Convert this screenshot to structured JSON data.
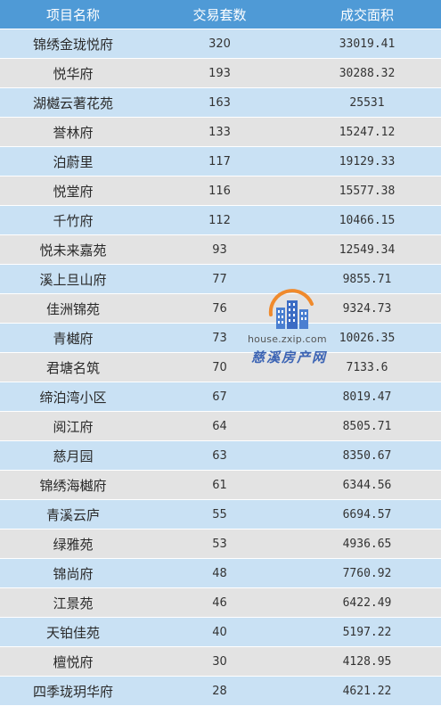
{
  "table": {
    "headers": [
      "项目名称",
      "交易套数",
      "成交面积"
    ],
    "rows": [
      [
        "锦绣金珑悦府",
        "320",
        "33019.41"
      ],
      [
        "悦华府",
        "193",
        "30288.32"
      ],
      [
        "湖樾云著花苑",
        "163",
        "25531"
      ],
      [
        "誉林府",
        "133",
        "15247.12"
      ],
      [
        "泊蔚里",
        "117",
        "19129.33"
      ],
      [
        "悦堂府",
        "116",
        "15577.38"
      ],
      [
        "千竹府",
        "112",
        "10466.15"
      ],
      [
        "悦未来嘉苑",
        "93",
        "12549.34"
      ],
      [
        "溪上旦山府",
        "77",
        "9855.71"
      ],
      [
        "佳洲锦苑",
        "76",
        "9324.73"
      ],
      [
        "青樾府",
        "73",
        "10026.35"
      ],
      [
        "君塘名筑",
        "70",
        "7133.6"
      ],
      [
        "缔泊湾小区",
        "67",
        "8019.47"
      ],
      [
        "阅江府",
        "64",
        "8505.71"
      ],
      [
        "慈月园",
        "63",
        "8350.67"
      ],
      [
        "锦绣海樾府",
        "61",
        "6344.56"
      ],
      [
        "青溪云庐",
        "55",
        "6694.57"
      ],
      [
        "绿雅苑",
        "53",
        "4936.65"
      ],
      [
        "锦尚府",
        "48",
        "7760.92"
      ],
      [
        "江景苑",
        "46",
        "6422.49"
      ],
      [
        "天铂佳苑",
        "40",
        "5197.22"
      ],
      [
        "檀悦府",
        "30",
        "4128.95"
      ],
      [
        "四季珑玥华府",
        "28",
        "4621.22"
      ]
    ]
  },
  "watermark": {
    "url": "house.zxip.com",
    "name": "慈溪房产网",
    "icon": "building-logo-icon"
  },
  "colors": {
    "header_bg": "#4f9ad6",
    "row_blue": "#c9e1f4",
    "row_gray": "#e3e3e3"
  }
}
